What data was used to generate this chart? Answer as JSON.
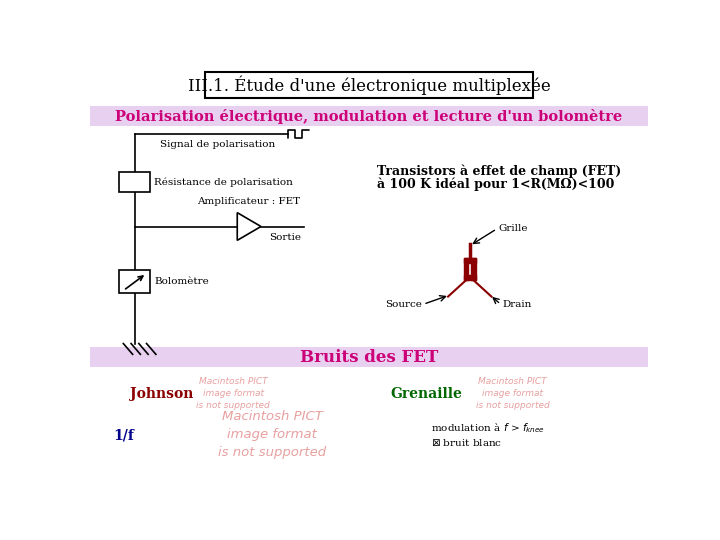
{
  "title": "III.1. Étude d'une électronique multiplexée",
  "subtitle": "Polarisation électrique, modulation et lecture d'un bolomètre",
  "section2_title": "Bruits des FET",
  "bg_color": "#ffffff",
  "banner_bg": "#e8d0f0",
  "signal_label": "Signal de polarisation",
  "resistance_label": "Résistance de polarisation",
  "amplificateur_label": "Amplificateur : FET",
  "sortie_label": "Sortie",
  "bolometre_label": "Bolomètre",
  "transistor_text1": "Transistors à effet de champ (FET)",
  "transistor_text2": "à 100 K idéal pour 1<R(MΩ)<100",
  "grille_label": "Grille",
  "source_label": "Source",
  "drain_label": "Drain",
  "johnson_label": "Johnson",
  "grenaille_label": "Grenaille",
  "one_over_f": "1/f",
  "title_color": "#000000",
  "subtitle_color": "#cc0077",
  "section2_color": "#cc0077",
  "johnson_color": "#8b0000",
  "grenaille_color": "#006600",
  "onef_color": "#00008b",
  "fet_symbol_color": "#8b0000",
  "mod_text_color": "#000000",
  "pict_color": "#e8a0a0"
}
